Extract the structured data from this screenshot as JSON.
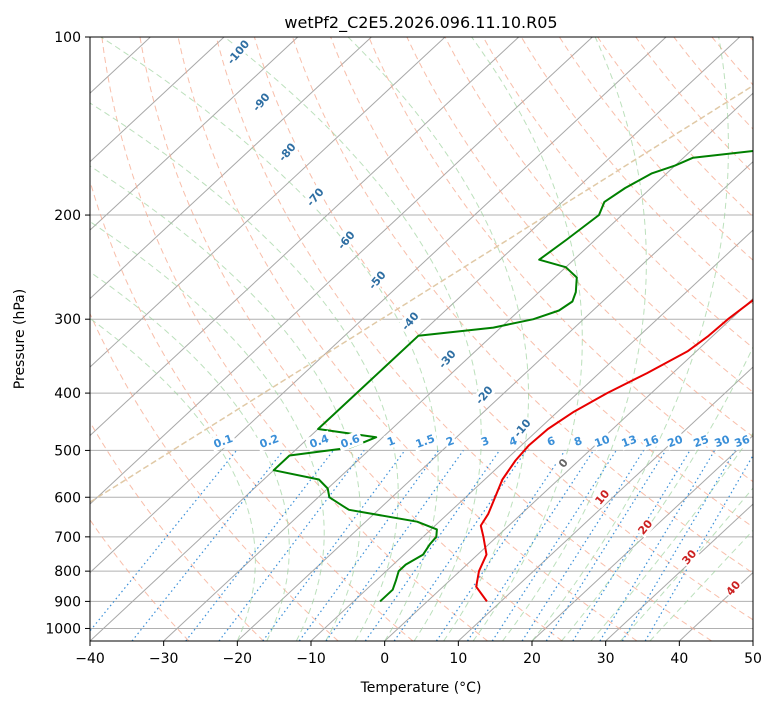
{
  "chart_data": {
    "type": "line",
    "title": "wetPf2_C2E5.2026.096.11.10.R05",
    "xlabel": "Temperature (°C)",
    "ylabel": "Pressure (hPa)",
    "xlim": [
      -40,
      50
    ],
    "ylim": [
      1050,
      100
    ],
    "y_scale": "log",
    "x_ticks": [
      -40,
      -30,
      -20,
      -10,
      0,
      10,
      20,
      30,
      40,
      50
    ],
    "x_tick_labels": [
      "−40",
      "−30",
      "−20",
      "−10",
      "0",
      "10",
      "20",
      "30",
      "40",
      "50"
    ],
    "y_ticks": [
      1000,
      900,
      800,
      700,
      600,
      500,
      400,
      300,
      200,
      100
    ],
    "y_tick_labels": [
      "1000",
      "900",
      "800",
      "700",
      "600",
      "500",
      "400",
      "300",
      "200",
      "100"
    ],
    "grid": true,
    "series": [
      {
        "color": "#e80000",
        "points": [
          [
            900,
            8.1
          ],
          [
            850,
            4.5
          ],
          [
            800,
            2.6
          ],
          [
            750,
            1.2
          ],
          [
            700,
            -1.8
          ],
          [
            670,
            -3.8
          ],
          [
            640,
            -4.5
          ],
          [
            600,
            -6.0
          ],
          [
            560,
            -7.6
          ],
          [
            520,
            -8.6
          ],
          [
            490,
            -9.0
          ],
          [
            460,
            -8.8
          ],
          [
            430,
            -7.8
          ],
          [
            400,
            -6.0
          ],
          [
            370,
            -3.5
          ],
          [
            340,
            -1.2
          ],
          [
            320,
            -0.6
          ],
          [
            300,
            -0.4
          ],
          [
            270,
            0.5
          ],
          [
            250,
            2.4
          ],
          [
            230,
            4.4
          ],
          [
            210,
            7.3
          ],
          [
            190,
            9.7
          ],
          [
            170,
            11.7
          ],
          [
            160,
            13.9
          ],
          [
            150,
            14.5
          ],
          [
            140,
            16.3
          ],
          [
            130,
            16.7
          ],
          [
            120,
            17.4
          ],
          [
            110,
            19.4
          ],
          [
            100,
            21.5
          ]
        ]
      },
      {
        "color": "#008000",
        "points": [
          [
            900,
            -6.4
          ],
          [
            860,
            -6.4
          ],
          [
            830,
            -7.3
          ],
          [
            800,
            -8.3
          ],
          [
            780,
            -8.3
          ],
          [
            750,
            -7.4
          ],
          [
            720,
            -8.0
          ],
          [
            700,
            -8.2
          ],
          [
            680,
            -9.2
          ],
          [
            660,
            -13.0
          ],
          [
            630,
            -24.0
          ],
          [
            620,
            -25.5
          ],
          [
            600,
            -28.5
          ],
          [
            580,
            -30.0
          ],
          [
            560,
            -32.5
          ],
          [
            540,
            -40.0
          ],
          [
            510,
            -40.0
          ],
          [
            495,
            -33.0
          ],
          [
            485,
            -31.9
          ],
          [
            475,
            -30.9
          ],
          [
            460,
            -40.0
          ],
          [
            320,
            -40.0
          ],
          [
            310,
            -31.0
          ],
          [
            300,
            -26.8
          ],
          [
            290,
            -24.6
          ],
          [
            280,
            -24.1
          ],
          [
            270,
            -25.0
          ],
          [
            255,
            -27.0
          ],
          [
            245,
            -30.0
          ],
          [
            238,
            -34.7
          ],
          [
            220,
            -33.9
          ],
          [
            200,
            -33.1
          ],
          [
            190,
            -34.3
          ],
          [
            180,
            -33.5
          ],
          [
            170,
            -32.0
          ],
          [
            165,
            -30.0
          ],
          [
            160,
            -28.7
          ],
          [
            155,
            -20.0
          ],
          [
            150,
            -15.5
          ],
          [
            145,
            -14.2
          ],
          [
            140,
            -13.4
          ],
          [
            130,
            -9.5
          ],
          [
            120,
            -7.5
          ],
          [
            110,
            -6.8
          ],
          [
            100,
            -5.9
          ]
        ]
      }
    ],
    "dry_adiabat_labels": [
      "-100",
      "-90",
      "-80",
      "-70",
      "-60",
      "-50",
      "-40",
      "-30",
      "-20",
      "-10"
    ],
    "mixing_ratio_labels": [
      "0.1",
      "0.2",
      "0.4",
      "0.6",
      "1",
      "1.5",
      "2",
      "3",
      "4",
      "6",
      "8",
      "10",
      "13",
      "16",
      "20",
      "25",
      "30",
      "36"
    ],
    "moist_adiabat_labels": [
      "0",
      "10",
      "20",
      "30",
      "40"
    ]
  }
}
